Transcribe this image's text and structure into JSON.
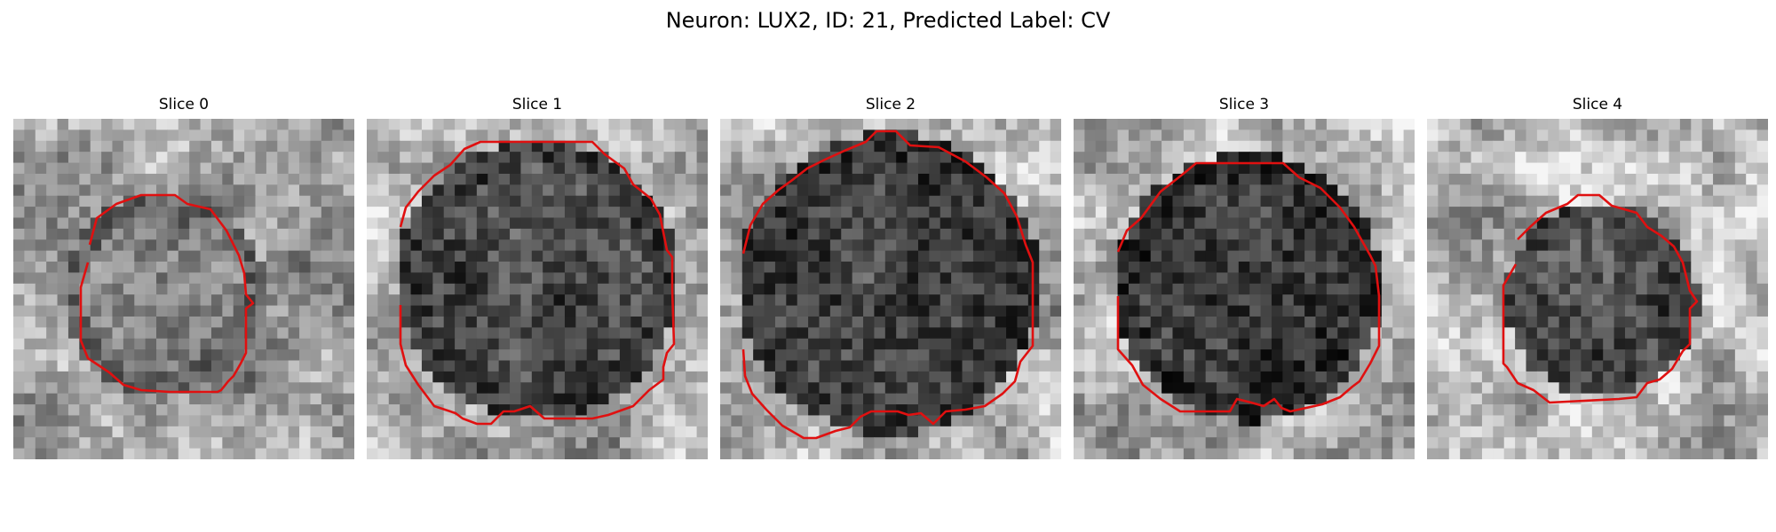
{
  "figure": {
    "title": "Neuron: LUX2, ID: 21, Predicted Label: CV",
    "contour_color": "#e01010"
  },
  "slices": [
    {
      "label": "Slice 0"
    },
    {
      "label": "Slice 1"
    },
    {
      "label": "Slice 2"
    },
    {
      "label": "Slice 3"
    },
    {
      "label": "Slice 4"
    }
  ]
}
